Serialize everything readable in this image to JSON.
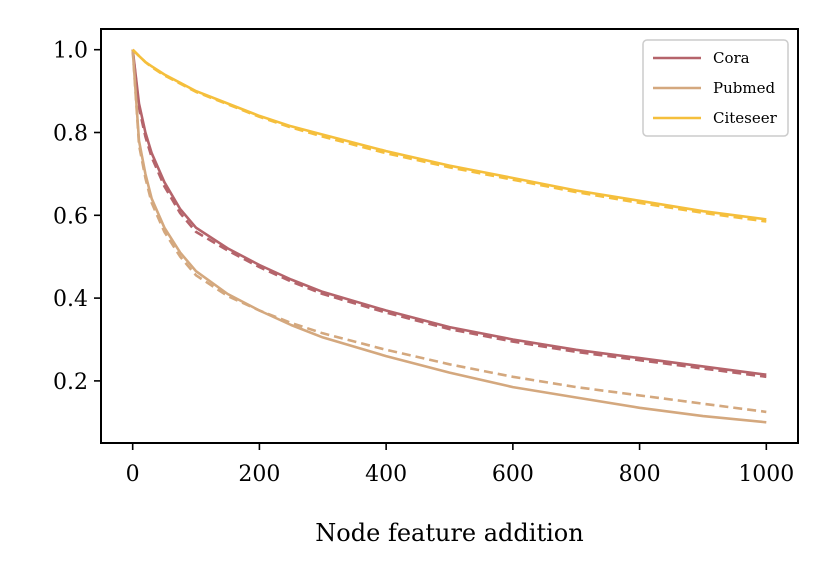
{
  "chart_data": {
    "type": "line",
    "title": "",
    "xlabel": "Node feature addition",
    "ylabel": "",
    "xlim": [
      -50,
      1050
    ],
    "ylim": [
      0.05,
      1.05
    ],
    "x_ticks": [
      0,
      200,
      400,
      600,
      800,
      1000
    ],
    "x_tick_labels": [
      "0",
      "200",
      "400",
      "600",
      "800",
      "1000"
    ],
    "y_ticks": [
      0.2,
      0.4,
      0.6,
      0.8,
      1.0
    ],
    "y_tick_labels": [
      "0.2",
      "0.4",
      "0.6",
      "0.8",
      "1.0"
    ],
    "grid": false,
    "legend": {
      "placement": "top-right",
      "entries": [
        "Cora",
        "Pubmed",
        "Citeseer"
      ]
    },
    "x": [
      0,
      10,
      20,
      30,
      50,
      75,
      100,
      150,
      200,
      250,
      300,
      400,
      500,
      600,
      700,
      800,
      900,
      1000
    ],
    "series": [
      {
        "name": "Cora",
        "color": "#b5646b",
        "style": "solid",
        "values": [
          1.0,
          0.87,
          0.8,
          0.75,
          0.68,
          0.615,
          0.57,
          0.52,
          0.48,
          0.445,
          0.415,
          0.37,
          0.33,
          0.3,
          0.275,
          0.255,
          0.235,
          0.215
        ]
      },
      {
        "name": "",
        "color": "#b5646b",
        "style": "dashed",
        "values": [
          1.0,
          0.86,
          0.79,
          0.74,
          0.67,
          0.605,
          0.56,
          0.515,
          0.475,
          0.44,
          0.41,
          0.365,
          0.325,
          0.295,
          0.27,
          0.25,
          0.23,
          0.21
        ]
      },
      {
        "name": "Pubmed",
        "color": "#d4a87e",
        "style": "solid",
        "values": [
          1.0,
          0.78,
          0.7,
          0.64,
          0.57,
          0.51,
          0.465,
          0.41,
          0.37,
          0.335,
          0.305,
          0.26,
          0.22,
          0.185,
          0.16,
          0.135,
          0.115,
          0.1
        ]
      },
      {
        "name": "",
        "color": "#d4a87e",
        "style": "dashed",
        "values": [
          1.0,
          0.77,
          0.69,
          0.63,
          0.56,
          0.5,
          0.455,
          0.405,
          0.37,
          0.34,
          0.315,
          0.275,
          0.24,
          0.21,
          0.185,
          0.165,
          0.145,
          0.125
        ]
      },
      {
        "name": "Citeseer",
        "color": "#f5bf3c",
        "style": "solid",
        "values": [
          1.0,
          0.985,
          0.97,
          0.96,
          0.94,
          0.92,
          0.9,
          0.87,
          0.84,
          0.815,
          0.795,
          0.755,
          0.72,
          0.69,
          0.66,
          0.635,
          0.61,
          0.59
        ]
      },
      {
        "name": "",
        "color": "#f5bf3c",
        "style": "dashed",
        "values": [
          1.0,
          0.985,
          0.97,
          0.958,
          0.938,
          0.918,
          0.898,
          0.868,
          0.838,
          0.812,
          0.79,
          0.75,
          0.716,
          0.686,
          0.656,
          0.63,
          0.606,
          0.585
        ]
      }
    ]
  }
}
